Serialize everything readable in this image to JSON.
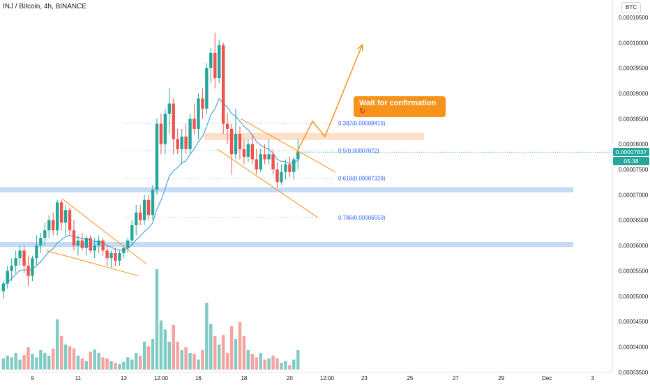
{
  "header": {
    "pair_title": "INJ / Bitcoin, 4h, BINANCE",
    "currency_button": "BTC"
  },
  "price_tags": {
    "last_price": "0.00007837",
    "countdown": "05:38"
  },
  "annotation": {
    "callout_text": "Wait for confirmation",
    "callout_icon": "refresh-icon"
  },
  "colors": {
    "up": "#26a69a",
    "down": "#ef5350",
    "volume_up": "#80cbc4",
    "volume_down": "#f5a3a0",
    "ema": "#4fa6dd",
    "pattern_lines": "#f7931a",
    "fib_line": "#80b9e0",
    "support_zone": "#c3dbf5",
    "resistance_zone": "#fde0c7",
    "callout": "#f7931a"
  },
  "chart_data": {
    "type": "candlestick",
    "symbol": "INJ / Bitcoin",
    "timeframe": "4h",
    "exchange": "BINANCE",
    "y_axis": {
      "ticks": [
        "0.00010500",
        "0.00010000",
        "0.00009500",
        "0.00009000",
        "0.00008500",
        "0.00008000",
        "0.00007500",
        "0.00007000",
        "0.00006500",
        "0.00006000",
        "0.00005500",
        "0.00005000",
        "0.00004500",
        "0.00004000",
        "0.00003500"
      ],
      "range": [
        3.47e-05,
        0.000107
      ]
    },
    "x_axis": {
      "ticks": [
        {
          "label": "9",
          "bar": 7
        },
        {
          "label": "11",
          "bar": 18
        },
        {
          "label": "13",
          "bar": 29
        },
        {
          "label": "12:00",
          "bar": 38
        },
        {
          "label": "16",
          "bar": 47
        },
        {
          "label": "18",
          "bar": 58
        },
        {
          "label": "20",
          "bar": 69
        },
        {
          "label": "12:00",
          "bar": 78
        },
        {
          "label": "23",
          "bar": 87
        },
        {
          "label": "25",
          "bar": 98
        },
        {
          "label": "27",
          "bar": 109
        },
        {
          "label": "29",
          "bar": 120
        },
        {
          "label": "Dec",
          "bar": 131
        },
        {
          "label": "3",
          "bar": 142
        }
      ]
    },
    "candles": [
      {
        "o": 5.1e-05,
        "h": 5.3e-05,
        "l": 4.95e-05,
        "c": 5.25e-05
      },
      {
        "o": 5.25e-05,
        "h": 5.6e-05,
        "l": 5.15e-05,
        "c": 5.5e-05
      },
      {
        "o": 5.5e-05,
        "h": 5.75e-05,
        "l": 5.3e-05,
        "c": 5.6e-05
      },
      {
        "o": 5.6e-05,
        "h": 5.9e-05,
        "l": 5.45e-05,
        "c": 5.75e-05
      },
      {
        "o": 5.75e-05,
        "h": 6e-05,
        "l": 5.6e-05,
        "c": 5.9e-05
      },
      {
        "o": 5.9e-05,
        "h": 6e-05,
        "l": 5.45e-05,
        "c": 5.6e-05
      },
      {
        "o": 5.6e-05,
        "h": 5.8e-05,
        "l": 5.2e-05,
        "c": 5.4e-05
      },
      {
        "o": 5.4e-05,
        "h": 5.8e-05,
        "l": 5.3e-05,
        "c": 5.75e-05
      },
      {
        "o": 5.75e-05,
        "h": 6.2e-05,
        "l": 5.6e-05,
        "c": 6e-05
      },
      {
        "o": 6e-05,
        "h": 6.25e-05,
        "l": 5.85e-05,
        "c": 6.15e-05
      },
      {
        "o": 6.15e-05,
        "h": 6.45e-05,
        "l": 6e-05,
        "c": 6.3e-05
      },
      {
        "o": 6.3e-05,
        "h": 6.6e-05,
        "l": 6.15e-05,
        "c": 6.5e-05
      },
      {
        "o": 6.5e-05,
        "h": 6.65e-05,
        "l": 6.2e-05,
        "c": 6.3e-05
      },
      {
        "o": 6.3e-05,
        "h": 6.9e-05,
        "l": 6.2e-05,
        "c": 6.85e-05
      },
      {
        "o": 6.85e-05,
        "h": 6.9e-05,
        "l": 6.3e-05,
        "c": 6.45e-05
      },
      {
        "o": 6.45e-05,
        "h": 6.8e-05,
        "l": 6.2e-05,
        "c": 6.7e-05
      },
      {
        "o": 6.7e-05,
        "h": 6.75e-05,
        "l": 6.2e-05,
        "c": 6.3e-05
      },
      {
        "o": 6.3e-05,
        "h": 6.5e-05,
        "l": 5.9e-05,
        "c": 6e-05
      },
      {
        "o": 6e-05,
        "h": 6.2e-05,
        "l": 5.8e-05,
        "c": 6.1e-05
      },
      {
        "o": 6.1e-05,
        "h": 6.25e-05,
        "l": 5.9e-05,
        "c": 5.95e-05
      },
      {
        "o": 5.95e-05,
        "h": 6.2e-05,
        "l": 5.8e-05,
        "c": 6.15e-05
      },
      {
        "o": 6.15e-05,
        "h": 6.2e-05,
        "l": 5.85e-05,
        "c": 5.9e-05
      },
      {
        "o": 5.9e-05,
        "h": 6.15e-05,
        "l": 5.75e-05,
        "c": 6e-05
      },
      {
        "o": 6e-05,
        "h": 6.2e-05,
        "l": 5.85e-05,
        "c": 6.1e-05
      },
      {
        "o": 6.1e-05,
        "h": 6.15e-05,
        "l": 5.8e-05,
        "c": 5.9e-05
      },
      {
        "o": 5.9e-05,
        "h": 6e-05,
        "l": 5.6e-05,
        "c": 5.75e-05
      },
      {
        "o": 5.75e-05,
        "h": 5.9e-05,
        "l": 5.55e-05,
        "c": 5.85e-05
      },
      {
        "o": 5.85e-05,
        "h": 5.95e-05,
        "l": 5.6e-05,
        "c": 5.7e-05
      },
      {
        "o": 5.7e-05,
        "h": 5.9e-05,
        "l": 5.6e-05,
        "c": 5.85e-05
      },
      {
        "o": 5.85e-05,
        "h": 6e-05,
        "l": 5.75e-05,
        "c": 5.95e-05
      },
      {
        "o": 5.95e-05,
        "h": 6.15e-05,
        "l": 5.85e-05,
        "c": 6.1e-05
      },
      {
        "o": 6.1e-05,
        "h": 6.5e-05,
        "l": 6e-05,
        "c": 6.4e-05
      },
      {
        "o": 6.4e-05,
        "h": 6.8e-05,
        "l": 6.2e-05,
        "c": 6.65e-05
      },
      {
        "o": 6.65e-05,
        "h": 6.8e-05,
        "l": 6.4e-05,
        "c": 6.5e-05
      },
      {
        "o": 6.5e-05,
        "h": 7e-05,
        "l": 6.4e-05,
        "c": 6.9e-05
      },
      {
        "o": 6.9e-05,
        "h": 7e-05,
        "l": 6.5e-05,
        "c": 6.6e-05
      },
      {
        "o": 6.6e-05,
        "h": 7.2e-05,
        "l": 6.5e-05,
        "c": 7.1e-05
      },
      {
        "o": 7.1e-05,
        "h": 8.5e-05,
        "l": 7e-05,
        "c": 8.4e-05
      },
      {
        "o": 8.4e-05,
        "h": 8.6e-05,
        "l": 7.8e-05,
        "c": 8e-05
      },
      {
        "o": 8e-05,
        "h": 8.7e-05,
        "l": 7.8e-05,
        "c": 8.6e-05
      },
      {
        "o": 8.6e-05,
        "h": 9.1e-05,
        "l": 8.2e-05,
        "c": 8.8e-05
      },
      {
        "o": 8.8e-05,
        "h": 8.9e-05,
        "l": 7.8e-05,
        "c": 8.1e-05
      },
      {
        "o": 8.1e-05,
        "h": 8.3e-05,
        "l": 7.8e-05,
        "c": 7.9e-05
      },
      {
        "o": 7.9e-05,
        "h": 8.3e-05,
        "l": 7.6e-05,
        "c": 8.15e-05
      },
      {
        "o": 8.15e-05,
        "h": 8.4e-05,
        "l": 7.8e-05,
        "c": 7.9e-05
      },
      {
        "o": 7.9e-05,
        "h": 8.6e-05,
        "l": 7.8e-05,
        "c": 8.5e-05
      },
      {
        "o": 8.5e-05,
        "h": 8.8e-05,
        "l": 8.2e-05,
        "c": 8.3e-05
      },
      {
        "o": 8.3e-05,
        "h": 9e-05,
        "l": 8.1e-05,
        "c": 8.9e-05
      },
      {
        "o": 8.9e-05,
        "h": 9.1e-05,
        "l": 8.5e-05,
        "c": 8.7e-05
      },
      {
        "o": 8.7e-05,
        "h": 9.6e-05,
        "l": 8.6e-05,
        "c": 9.5e-05
      },
      {
        "o": 9.5e-05,
        "h": 9.9e-05,
        "l": 9.2e-05,
        "c": 9.8e-05
      },
      {
        "o": 9.8e-05,
        "h": 0.000102,
        "l": 9.1e-05,
        "c": 9.3e-05
      },
      {
        "o": 9.3e-05,
        "h": 0.0001005,
        "l": 9.2e-05,
        "c": 9.95e-05
      },
      {
        "o": 9.95e-05,
        "h": 0.0001,
        "l": 8.2e-05,
        "c": 8.4e-05
      },
      {
        "o": 8.4e-05,
        "h": 8.6e-05,
        "l": 8e-05,
        "c": 8.3e-05
      },
      {
        "o": 8.3e-05,
        "h": 8.4e-05,
        "l": 7.4e-05,
        "c": 7.8e-05
      },
      {
        "o": 7.8e-05,
        "h": 8.7e-05,
        "l": 7.7e-05,
        "c": 8.2e-05
      },
      {
        "o": 8.2e-05,
        "h": 8.35e-05,
        "l": 7.7e-05,
        "c": 7.9e-05
      },
      {
        "o": 7.9e-05,
        "h": 8.1e-05,
        "l": 7.6e-05,
        "c": 7.75e-05
      },
      {
        "o": 7.75e-05,
        "h": 8.1e-05,
        "l": 7.65e-05,
        "c": 8e-05
      },
      {
        "o": 8e-05,
        "h": 8.2e-05,
        "l": 7.6e-05,
        "c": 7.7e-05
      },
      {
        "o": 7.7e-05,
        "h": 7.9e-05,
        "l": 7.4e-05,
        "c": 7.5e-05
      },
      {
        "o": 7.5e-05,
        "h": 7.9e-05,
        "l": 7.45e-05,
        "c": 7.8e-05
      },
      {
        "o": 7.8e-05,
        "h": 8e-05,
        "l": 7.6e-05,
        "c": 7.7e-05
      },
      {
        "o": 7.7e-05,
        "h": 8.1e-05,
        "l": 7.6e-05,
        "c": 7.8e-05
      },
      {
        "o": 7.8e-05,
        "h": 7.9e-05,
        "l": 7.4e-05,
        "c": 7.5e-05
      },
      {
        "o": 7.5e-05,
        "h": 7.65e-05,
        "l": 7.15e-05,
        "c": 7.25e-05
      },
      {
        "o": 7.25e-05,
        "h": 7.6e-05,
        "l": 7.2e-05,
        "c": 7.45e-05
      },
      {
        "o": 7.45e-05,
        "h": 7.7e-05,
        "l": 7.3e-05,
        "c": 7.6e-05
      },
      {
        "o": 7.6e-05,
        "h": 7.75e-05,
        "l": 7.35e-05,
        "c": 7.45e-05
      },
      {
        "o": 7.45e-05,
        "h": 7.75e-05,
        "l": 7.3e-05,
        "c": 7.7e-05
      },
      {
        "o": 7.7e-05,
        "h": 8.1e-05,
        "l": 7.5e-05,
        "c": 7.84e-05
      }
    ],
    "ema": [
      5.2e-05,
      5.27e-05,
      5.35e-05,
      5.43e-05,
      5.51e-05,
      5.52e-05,
      5.51e-05,
      5.53e-05,
      5.6e-05,
      5.68e-05,
      5.78e-05,
      5.88e-05,
      5.94e-05,
      6.05e-05,
      6.11e-05,
      6.18e-05,
      6.2e-05,
      6.17e-05,
      6.16e-05,
      6.13e-05,
      6.13e-05,
      6.1e-05,
      6.08e-05,
      6.08e-05,
      6.05e-05,
      6e-05,
      5.97e-05,
      5.92e-05,
      5.91e-05,
      5.91e-05,
      5.94e-05,
      6.01e-05,
      6.11e-05,
      6.18e-05,
      6.28e-05,
      6.34e-05,
      6.45e-05,
      6.72e-05,
      6.89e-05,
      7.12e-05,
      7.37e-05,
      7.47e-05,
      7.54e-05,
      7.63e-05,
      7.67e-05,
      7.8e-05,
      7.9e-05,
      8.05e-05,
      8.15e-05,
      8.35e-05,
      8.58e-05,
      8.7e-05,
      8.9e-05,
      8.8e-05,
      8.73e-05,
      8.6e-05,
      8.55e-05,
      8.45e-05,
      8.35e-05,
      8.28e-05,
      8.18e-05,
      8.05e-05,
      7.98e-05,
      7.93e-05,
      7.9e-05,
      7.82e-05,
      7.7e-05,
      7.66e-05,
      7.65e-05,
      7.62e-05,
      7.63e-05,
      7.68e-05
    ],
    "volume": [
      {
        "v": 20,
        "up": true
      },
      {
        "v": 25,
        "up": true
      },
      {
        "v": 22,
        "up": true
      },
      {
        "v": 30,
        "up": true
      },
      {
        "v": 18,
        "up": true
      },
      {
        "v": 26,
        "up": false
      },
      {
        "v": 40,
        "up": false
      },
      {
        "v": 28,
        "up": true
      },
      {
        "v": 22,
        "up": true
      },
      {
        "v": 35,
        "up": true
      },
      {
        "v": 30,
        "up": true
      },
      {
        "v": 25,
        "up": true
      },
      {
        "v": 38,
        "up": false
      },
      {
        "v": 90,
        "up": true
      },
      {
        "v": 60,
        "up": false
      },
      {
        "v": 45,
        "up": true
      },
      {
        "v": 42,
        "up": false
      },
      {
        "v": 38,
        "up": false
      },
      {
        "v": 25,
        "up": true
      },
      {
        "v": 20,
        "up": false
      },
      {
        "v": 15,
        "up": true
      },
      {
        "v": 32,
        "up": false
      },
      {
        "v": 36,
        "up": true
      },
      {
        "v": 30,
        "up": true
      },
      {
        "v": 22,
        "up": false
      },
      {
        "v": 20,
        "up": false
      },
      {
        "v": 15,
        "up": true
      },
      {
        "v": 12,
        "up": false
      },
      {
        "v": 10,
        "up": true
      },
      {
        "v": 14,
        "up": true
      },
      {
        "v": 22,
        "up": true
      },
      {
        "v": 18,
        "up": true
      },
      {
        "v": 30,
        "up": true
      },
      {
        "v": 25,
        "up": false
      },
      {
        "v": 50,
        "up": true
      },
      {
        "v": 42,
        "up": false
      },
      {
        "v": 55,
        "up": true
      },
      {
        "v": 180,
        "up": true
      },
      {
        "v": 88,
        "up": true
      },
      {
        "v": 72,
        "up": true
      },
      {
        "v": 50,
        "up": true
      },
      {
        "v": 80,
        "up": false
      },
      {
        "v": 50,
        "up": false
      },
      {
        "v": 35,
        "up": true
      },
      {
        "v": 40,
        "up": false
      },
      {
        "v": 30,
        "up": true
      },
      {
        "v": 28,
        "up": false
      },
      {
        "v": 18,
        "up": true
      },
      {
        "v": 35,
        "up": false
      },
      {
        "v": 120,
        "up": true
      },
      {
        "v": 82,
        "up": true
      },
      {
        "v": 60,
        "up": false
      },
      {
        "v": 45,
        "up": true
      },
      {
        "v": 62,
        "up": false
      },
      {
        "v": 30,
        "up": false
      },
      {
        "v": 78,
        "up": false
      },
      {
        "v": 55,
        "up": true
      },
      {
        "v": 85,
        "up": false
      },
      {
        "v": 60,
        "up": false
      },
      {
        "v": 35,
        "up": true
      },
      {
        "v": 28,
        "up": false
      },
      {
        "v": 22,
        "up": false
      },
      {
        "v": 30,
        "up": true
      },
      {
        "v": 18,
        "up": false
      },
      {
        "v": 20,
        "up": true
      },
      {
        "v": 25,
        "up": false
      },
      {
        "v": 20,
        "up": false
      },
      {
        "v": 12,
        "up": true
      },
      {
        "v": 15,
        "up": true
      },
      {
        "v": 8,
        "up": false
      },
      {
        "v": 18,
        "up": true
      },
      {
        "v": 35,
        "up": true
      }
    ],
    "fib_levels": [
      {
        "label": "0.382(0.00008416)",
        "price": 8.416e-05
      },
      {
        "label": "0.5(0.00007872)",
        "price": 7.872e-05
      },
      {
        "label": "0.618(0.00007328)",
        "price": 7.328e-05
      },
      {
        "label": "0.786(0.00006553)",
        "price": 6.553e-05
      }
    ],
    "support_zones": [
      {
        "price_low": 7.05e-05,
        "price_high": 7.15e-05
      },
      {
        "price_low": 5.97e-05,
        "price_high": 6.07e-05
      }
    ],
    "resistance_zone": {
      "price_low": 8.08e-05,
      "price_high": 8.22e-05
    },
    "trendlines": [
      {
        "from": {
          "bar": 14.2,
          "price": 6.92e-05
        },
        "to": {
          "bar": 34.6,
          "price": 5.63e-05
        }
      },
      {
        "from": {
          "bar": 10.3,
          "price": 5.9e-05
        },
        "to": {
          "bar": 32.6,
          "price": 5.4e-05
        }
      },
      {
        "from": {
          "bar": 57.2,
          "price": 8.5e-05
        },
        "to": {
          "bar": 80.0,
          "price": 7.45e-05
        }
      },
      {
        "from": {
          "bar": 51.6,
          "price": 7.9e-05
        },
        "to": {
          "bar": 75.8,
          "price": 6.55e-05
        }
      }
    ],
    "projection_path": [
      {
        "bar": 70.5,
        "price": 7.8e-05
      },
      {
        "bar": 74.5,
        "price": 8.45e-05
      },
      {
        "bar": 77.5,
        "price": 8.15e-05
      },
      {
        "bar": 86.5,
        "price": 9.96e-05
      }
    ]
  }
}
